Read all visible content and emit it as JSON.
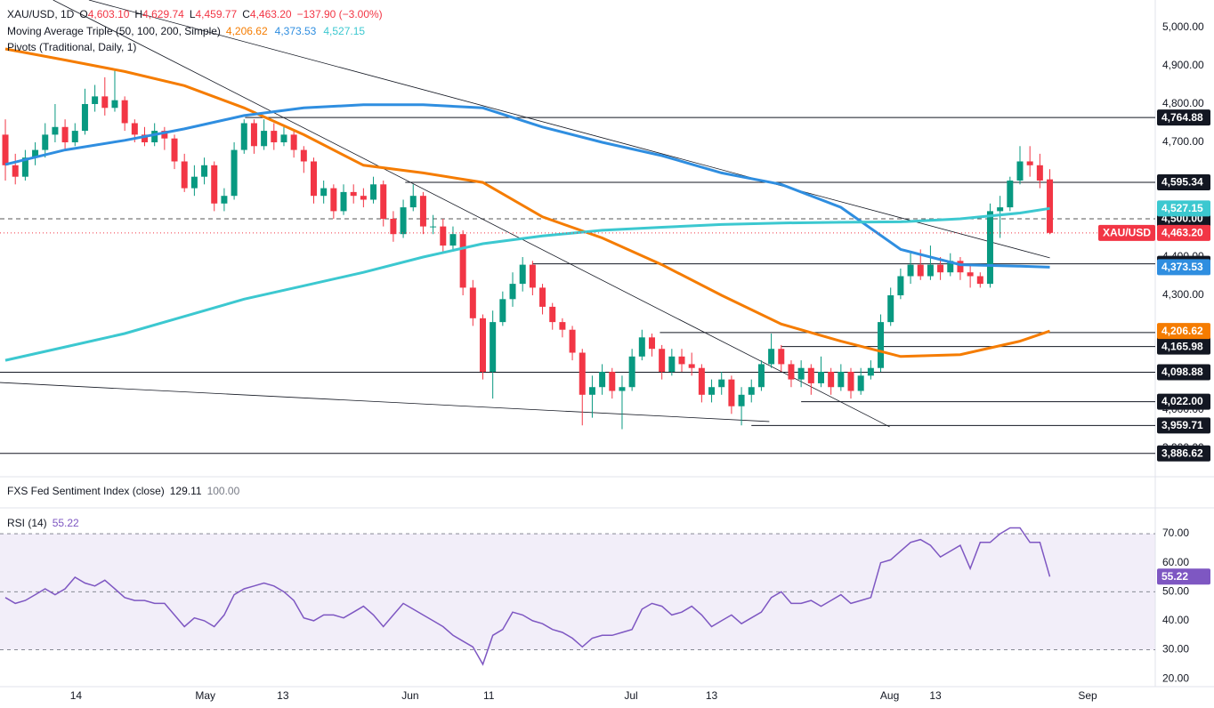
{
  "chart_data": [
    {
      "type": "candlestick",
      "header": {
        "symbol": "XAU/USD, 1D",
        "ohlc": [
          {
            "key": "O",
            "value": "4,603.10"
          },
          {
            "key": "H",
            "value": "4,629.74"
          },
          {
            "key": "L",
            "value": "4,459.77"
          },
          {
            "key": "C",
            "value": "4,463.20"
          }
        ],
        "change": "−137.90 (−3.00%)",
        "ma_title": "Moving Average Triple (50, 100, 200, Simple)",
        "pivots_title": "Pivots (Traditional, Daily, 1)"
      },
      "symbol_tag": "XAU/USD",
      "up_color": "#089981",
      "down_color": "#f23645",
      "xlim": [
        -0.54,
        115.6
      ],
      "xticks": [
        {
          "value": 7.1,
          "label": "14"
        },
        {
          "value": 20.1,
          "label": "May"
        },
        {
          "value": 27.9,
          "label": "13"
        },
        {
          "value": 40.7,
          "label": "Jun"
        },
        {
          "value": 48.6,
          "label": "11"
        },
        {
          "value": 62.9,
          "label": "Jul"
        },
        {
          "value": 71,
          "label": "13"
        },
        {
          "value": 88.9,
          "label": "Aug"
        },
        {
          "value": 93.5,
          "label": "13"
        },
        {
          "value": 108.8,
          "label": "Sep"
        }
      ],
      "ylim": [
        3828,
        5072
      ],
      "yticks": [
        {
          "value": 3900,
          "label": "3,900.00"
        },
        {
          "value": 4000,
          "label": "4,000.00"
        },
        {
          "value": 4100,
          "label": "4,100.00"
        },
        {
          "value": 4200,
          "label": "4,200.00"
        },
        {
          "value": 4300,
          "label": "4,300.00"
        },
        {
          "value": 4400,
          "label": "4,400.00"
        },
        {
          "value": 4500,
          "label": "4,500.00"
        },
        {
          "value": 4600,
          "label": "4,600.00"
        },
        {
          "value": 4700,
          "label": "4,700.00"
        },
        {
          "value": 4800,
          "label": "4,800.00"
        },
        {
          "value": 4900,
          "label": "4,900.00"
        },
        {
          "value": 5000,
          "label": "5,000.00"
        }
      ],
      "last_label": "4,463.20",
      "candles": [
        [
          4720,
          4760,
          4600,
          4640
        ],
        [
          4640,
          4670,
          4590,
          4610
        ],
        [
          4610,
          4680,
          4600,
          4660
        ],
        [
          4660,
          4700,
          4640,
          4680
        ],
        [
          4680,
          4750,
          4660,
          4720
        ],
        [
          4720,
          4800,
          4700,
          4740
        ],
        [
          4740,
          4760,
          4680,
          4700
        ],
        [
          4700,
          4750,
          4690,
          4730
        ],
        [
          4730,
          4840,
          4720,
          4800
        ],
        [
          4800,
          4850,
          4780,
          4820
        ],
        [
          4820,
          4870,
          4770,
          4790
        ],
        [
          4790,
          4890,
          4780,
          4810
        ],
        [
          4810,
          4820,
          4730,
          4750
        ],
        [
          4750,
          4760,
          4700,
          4720
        ],
        [
          4720,
          4740,
          4690,
          4700
        ],
        [
          4700,
          4750,
          4690,
          4730
        ],
        [
          4730,
          4740,
          4680,
          4710
        ],
        [
          4710,
          4720,
          4630,
          4650
        ],
        [
          4650,
          4670,
          4570,
          4580
        ],
        [
          4580,
          4640,
          4560,
          4610
        ],
        [
          4610,
          4660,
          4590,
          4640
        ],
        [
          4640,
          4650,
          4520,
          4540
        ],
        [
          4540,
          4580,
          4520,
          4560
        ],
        [
          4560,
          4700,
          4550,
          4680
        ],
        [
          4680,
          4760,
          4670,
          4750
        ],
        [
          4750,
          4760,
          4670,
          4690
        ],
        [
          4690,
          4760,
          4680,
          4730
        ],
        [
          4730,
          4750,
          4680,
          4700
        ],
        [
          4700,
          4740,
          4690,
          4720
        ],
        [
          4720,
          4730,
          4660,
          4680
        ],
        [
          4680,
          4690,
          4620,
          4650
        ],
        [
          4650,
          4660,
          4540,
          4560
        ],
        [
          4560,
          4600,
          4540,
          4580
        ],
        [
          4580,
          4590,
          4500,
          4520
        ],
        [
          4520,
          4590,
          4510,
          4570
        ],
        [
          4570,
          4590,
          4540,
          4560
        ],
        [
          4560,
          4580,
          4530,
          4550
        ],
        [
          4550,
          4610,
          4540,
          4590
        ],
        [
          4590,
          4600,
          4480,
          4500
        ],
        [
          4500,
          4520,
          4440,
          4460
        ],
        [
          4460,
          4550,
          4450,
          4530
        ],
        [
          4530,
          4590,
          4520,
          4560
        ],
        [
          4560,
          4570,
          4460,
          4480
        ],
        [
          4480,
          4510,
          4460,
          4480
        ],
        [
          4480,
          4500,
          4410,
          4430
        ],
        [
          4430,
          4480,
          4420,
          4460
        ],
        [
          4460,
          4470,
          4300,
          4320
        ],
        [
          4320,
          4340,
          4220,
          4240
        ],
        [
          4240,
          4250,
          4080,
          4100
        ],
        [
          4100,
          4260,
          4030,
          4230
        ],
        [
          4230,
          4310,
          4220,
          4290
        ],
        [
          4290,
          4360,
          4270,
          4330
        ],
        [
          4330,
          4400,
          4310,
          4380
        ],
        [
          4380,
          4390,
          4300,
          4320
        ],
        [
          4320,
          4330,
          4250,
          4270
        ],
        [
          4270,
          4280,
          4210,
          4230
        ],
        [
          4230,
          4240,
          4190,
          4210
        ],
        [
          4210,
          4220,
          4130,
          4150
        ],
        [
          4150,
          4160,
          3960,
          4040
        ],
        [
          4040,
          4090,
          3980,
          4060
        ],
        [
          4060,
          4120,
          4040,
          4100
        ],
        [
          4100,
          4110,
          4030,
          4050
        ],
        [
          4050,
          4090,
          3950,
          4060
        ],
        [
          4060,
          4160,
          4050,
          4140
        ],
        [
          4140,
          4210,
          4130,
          4190
        ],
        [
          4190,
          4200,
          4140,
          4160
        ],
        [
          4160,
          4170,
          4080,
          4100
        ],
        [
          4100,
          4160,
          4090,
          4140
        ],
        [
          4140,
          4160,
          4100,
          4120
        ],
        [
          4120,
          4150,
          4090,
          4110
        ],
        [
          4110,
          4120,
          4020,
          4040
        ],
        [
          4040,
          4080,
          4020,
          4060
        ],
        [
          4060,
          4100,
          4040,
          4080
        ],
        [
          4080,
          4090,
          3990,
          4010
        ],
        [
          4010,
          4060,
          3960,
          4040
        ],
        [
          4040,
          4080,
          4020,
          4060
        ],
        [
          4060,
          4130,
          4050,
          4120
        ],
        [
          4120,
          4200,
          4110,
          4160
        ],
        [
          4160,
          4170,
          4100,
          4120
        ],
        [
          4120,
          4130,
          4060,
          4080
        ],
        [
          4080,
          4130,
          4060,
          4110
        ],
        [
          4110,
          4120,
          4040,
          4070
        ],
        [
          4070,
          4140,
          4060,
          4100
        ],
        [
          4100,
          4110,
          4040,
          4060
        ],
        [
          4060,
          4120,
          4050,
          4100
        ],
        [
          4100,
          4110,
          4030,
          4050
        ],
        [
          4050,
          4110,
          4040,
          4090
        ],
        [
          4090,
          4130,
          4080,
          4110
        ],
        [
          4110,
          4250,
          4100,
          4230
        ],
        [
          4230,
          4320,
          4220,
          4300
        ],
        [
          4300,
          4370,
          4290,
          4350
        ],
        [
          4350,
          4410,
          4330,
          4380
        ],
        [
          4380,
          4420,
          4340,
          4350
        ],
        [
          4350,
          4430,
          4340,
          4380
        ],
        [
          4380,
          4400,
          4340,
          4360
        ],
        [
          4360,
          4410,
          4350,
          4390
        ],
        [
          4390,
          4400,
          4340,
          4360
        ],
        [
          4360,
          4380,
          4320,
          4350
        ],
        [
          4350,
          4360,
          4320,
          4330
        ],
        [
          4330,
          4540,
          4320,
          4520
        ],
        [
          4520,
          4560,
          4450,
          4530
        ],
        [
          4530,
          4610,
          4520,
          4600
        ],
        [
          4600,
          4690,
          4590,
          4650
        ],
        [
          4650,
          4690,
          4610,
          4640
        ],
        [
          4640,
          4670,
          4580,
          4600
        ],
        [
          4603.1,
          4629.74,
          4459.77,
          4463.2
        ]
      ],
      "series": [
        {
          "name": "MA 50",
          "color": "#f57c00",
          "value_label": "4,206.62",
          "x": [
            0,
            6,
            12,
            18,
            24,
            30,
            36,
            42,
            48,
            54,
            60,
            66,
            72,
            78,
            84,
            90,
            96,
            102,
            105
          ],
          "values": [
            4944,
            4915,
            4885,
            4848,
            4790,
            4720,
            4640,
            4620,
            4595,
            4505,
            4450,
            4380,
            4300,
            4225,
            4180,
            4140,
            4145,
            4180,
            4206.62
          ]
        },
        {
          "name": "MA 100",
          "color": "#2f8ee0",
          "value_label": "4,373.53",
          "x": [
            0,
            6,
            12,
            18,
            24,
            30,
            36,
            42,
            48,
            54,
            60,
            66,
            72,
            78,
            84,
            90,
            96,
            102,
            105
          ],
          "values": [
            4642,
            4680,
            4705,
            4735,
            4770,
            4790,
            4798,
            4798,
            4790,
            4740,
            4700,
            4665,
            4620,
            4590,
            4530,
            4420,
            4380,
            4376,
            4373.53
          ]
        },
        {
          "name": "MA 200",
          "color": "#3cc8d0",
          "value_label": "4,527.15",
          "x": [
            0,
            6,
            12,
            18,
            24,
            30,
            36,
            42,
            48,
            54,
            60,
            66,
            72,
            78,
            84,
            90,
            96,
            102,
            105
          ],
          "values": [
            4130,
            4165,
            4200,
            4245,
            4290,
            4325,
            4360,
            4400,
            4435,
            4455,
            4470,
            4478,
            4485,
            4489,
            4491,
            4492,
            4500,
            4515,
            4527.15
          ]
        }
      ],
      "pivots": [
        {
          "value": 4764.88,
          "label": "4,764.88",
          "from": 24.1,
          "dashed": false
        },
        {
          "value": 4595.34,
          "label": "4,595.34",
          "from": 40.2,
          "dashed": false
        },
        {
          "value": 4500,
          "label": "4,500.00",
          "from": -0.54,
          "dashed": true
        },
        {
          "value": 4382.36,
          "label": "4,382.36",
          "from": 53,
          "dashed": false
        },
        {
          "value": 4202.61,
          "label": "4,202.61",
          "from": 65.8,
          "dashed": false
        },
        {
          "value": 4165.98,
          "label": "4,165.98",
          "from": 78,
          "dashed": false
        },
        {
          "value": 4098.88,
          "label": "4,098.88",
          "from": -0.54,
          "dashed": false
        },
        {
          "value": 4022,
          "label": "4,022.00",
          "from": 80,
          "dashed": false
        },
        {
          "value": 3959.71,
          "label": "3,959.71",
          "from": 75,
          "dashed": false
        },
        {
          "value": 3886.62,
          "label": "3,886.62",
          "from": -0.54,
          "dashed": false
        }
      ],
      "trendlines": [
        [
          [
            -0.54,
            4072
          ],
          [
            76.8,
            3970
          ]
        ],
        [
          [
            4.8,
            5072
          ],
          [
            88.9,
            3956
          ]
        ],
        [
          [
            8.4,
            5072
          ],
          [
            105,
            4398
          ]
        ]
      ]
    },
    {
      "type": "indicator",
      "title": "FXS Fed Sentiment Index (close)",
      "values": [
        "129.11",
        "100.00"
      ]
    },
    {
      "type": "line",
      "title": "RSI (14)",
      "color": "#7e57c2",
      "value_label": "55.22",
      "ylim": [
        17.3,
        78.6
      ],
      "yticks": [
        {
          "value": 20,
          "label": "20.00"
        },
        {
          "value": 30,
          "label": "30.00"
        },
        {
          "value": 40,
          "label": "40.00"
        },
        {
          "value": 50,
          "label": "50.00"
        },
        {
          "value": 60,
          "label": "60.00"
        },
        {
          "value": 70,
          "label": "70.00"
        }
      ],
      "band": [
        30,
        70
      ],
      "values": [
        48,
        46,
        47,
        49,
        51,
        49,
        51,
        55,
        53,
        52,
        54,
        51,
        48,
        47,
        47,
        46,
        46,
        42,
        38,
        41,
        40,
        38,
        42,
        49,
        51,
        52,
        53,
        52,
        50,
        47,
        41,
        40,
        42,
        42,
        41,
        43,
        45,
        42,
        38,
        42,
        46,
        44,
        42,
        40,
        38,
        35,
        33,
        31,
        25,
        35,
        37,
        43,
        42,
        40,
        39,
        37,
        36,
        34,
        31,
        34,
        35,
        35,
        36,
        37,
        44,
        46,
        45,
        42,
        43,
        45,
        42,
        38,
        40,
        42,
        39,
        41,
        43,
        48,
        50,
        46,
        46,
        47,
        45,
        47,
        49,
        46,
        47,
        48,
        60,
        61,
        64,
        67,
        68,
        66,
        62,
        64,
        66,
        58,
        67,
        67,
        70,
        72,
        72,
        67,
        67,
        55.22
      ]
    }
  ]
}
